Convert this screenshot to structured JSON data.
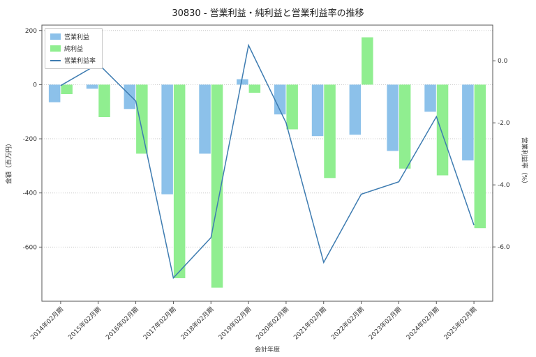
{
  "chart_data": {
    "type": "bar+line",
    "title": "30830 - 営業利益・純利益と営業利益率の推移",
    "xlabel": "会計年度",
    "ylabel_left": "金額（百万円）",
    "ylabel_right": "営業利益率（%）",
    "categories": [
      "2014年02月期",
      "2015年02月期",
      "2016年02月期",
      "2017年02月期",
      "2018年02月期",
      "2019年02月期",
      "2020年02月期",
      "2021年02月期",
      "2022年02月期",
      "2023年02月期",
      "2024年02月期",
      "2025年02月期"
    ],
    "series": [
      {
        "name": "営業利益",
        "type": "bar",
        "axis": "left",
        "color": "#8cc1ea",
        "values": [
          -65,
          -15,
          -90,
          -405,
          -255,
          20,
          -110,
          -190,
          -185,
          -245,
          -100,
          -280
        ]
      },
      {
        "name": "純利益",
        "type": "bar",
        "axis": "left",
        "color": "#90ee90",
        "values": [
          -35,
          -120,
          -255,
          -715,
          -750,
          -30,
          -165,
          -345,
          175,
          -310,
          -335,
          -530
        ]
      },
      {
        "name": "営業利益率",
        "type": "line",
        "axis": "right",
        "color": "#3e7cb1",
        "values": [
          -0.8,
          -0.1,
          -1.3,
          -7.0,
          -5.7,
          0.5,
          -2.0,
          -6.5,
          -4.3,
          -3.9,
          -1.8,
          -5.3
        ]
      }
    ],
    "ylim_left": [
      -800,
      220
    ],
    "ylim_right": [
      -7.75,
      1.15
    ],
    "yticks_left": [
      200,
      0,
      -200,
      -400,
      -600
    ],
    "yticks_right": [
      0.0,
      -2.0,
      -4.0,
      -6.0
    ],
    "grid": true,
    "legend_position": "upper left"
  }
}
